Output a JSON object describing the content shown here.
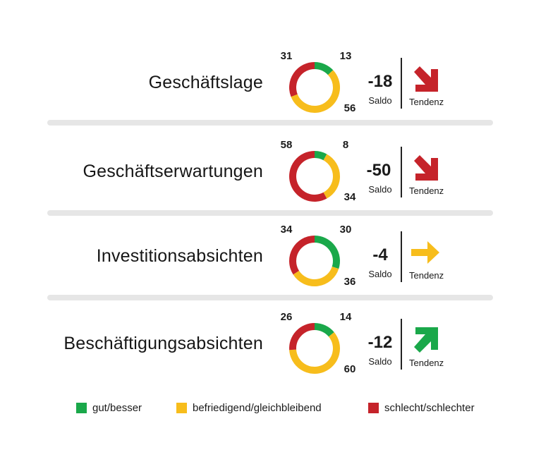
{
  "colors": {
    "good": "#1aa84a",
    "neutral": "#f7bd1c",
    "bad": "#c5232a"
  },
  "chart_data": {
    "type": "donut",
    "units": "percent",
    "series_names": [
      "gut/besser",
      "befriedigend/gleichbleibend",
      "schlecht/schlechter"
    ],
    "saldo_label": "Saldo",
    "tendency_label": "Tendenz",
    "rows": [
      {
        "name": "Geschäftslage",
        "good": 13,
        "neutral": 56,
        "bad": 31,
        "saldo": "-18",
        "tendency": "down"
      },
      {
        "name": "Geschäftserwartungen",
        "good": 8,
        "neutral": 34,
        "bad": 58,
        "saldo": "-50",
        "tendency": "down"
      },
      {
        "name": "Investitionsabsichten",
        "good": 30,
        "neutral": 36,
        "bad": 34,
        "saldo": "-4",
        "tendency": "flat"
      },
      {
        "name": "Beschäftigungsabsichten",
        "good": 14,
        "neutral": 60,
        "bad": 26,
        "saldo": "-12",
        "tendency": "up"
      }
    ],
    "legend": [
      {
        "label": "gut/besser",
        "color": "#1aa84a"
      },
      {
        "label": "befriedigend/gleichbleibend",
        "color": "#f7bd1c"
      },
      {
        "label": "schlecht/schlechter",
        "color": "#c5232a"
      }
    ]
  }
}
